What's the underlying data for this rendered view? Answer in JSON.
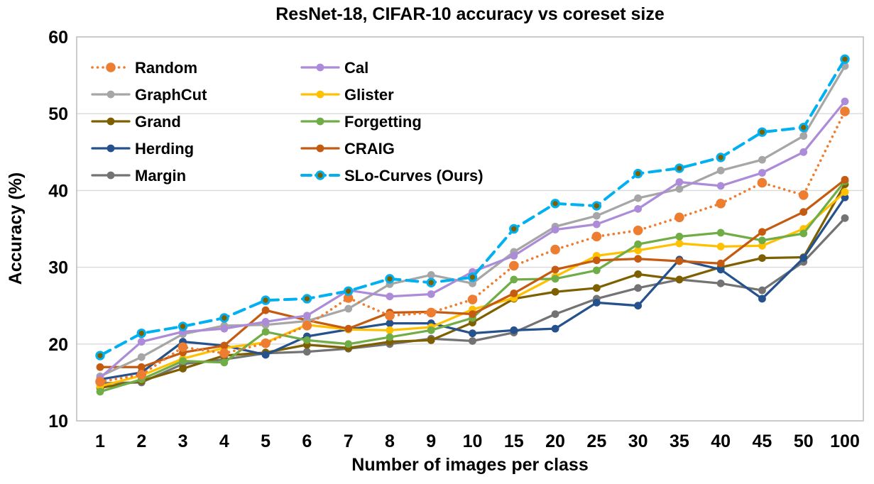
{
  "chart_data": {
    "type": "line",
    "title": "ResNet-18, CIFAR-10 accuracy vs coreset size",
    "xlabel": "Number of images per class",
    "ylabel": "Accuracy (%)",
    "ylim": [
      10,
      60
    ],
    "yticks": [
      10,
      20,
      30,
      40,
      50,
      60
    ],
    "grid": "horizontal",
    "legend_position": "inside-top-left-two-columns",
    "categories": [
      "1",
      "2",
      "3",
      "4",
      "5",
      "6",
      "7",
      "8",
      "9",
      "10",
      "15",
      "20",
      "25",
      "30",
      "35",
      "40",
      "45",
      "50",
      "100"
    ],
    "series": [
      {
        "name": "Random",
        "color": "#ED7D31",
        "style": "dotted",
        "marker": "circle",
        "z": 9,
        "values": [
          15.1,
          16.0,
          19.6,
          18.8,
          20.1,
          22.4,
          26.0,
          23.7,
          24.1,
          25.8,
          30.2,
          32.3,
          34.0,
          34.8,
          36.5,
          38.3,
          41.0,
          39.4,
          50.3
        ]
      },
      {
        "name": "Cal",
        "color": "#AC8CD8",
        "style": "solid",
        "marker": "circle",
        "z": 8,
        "values": [
          15.6,
          20.3,
          21.6,
          22.0,
          22.9,
          23.7,
          27.0,
          26.2,
          26.5,
          29.4,
          31.5,
          34.9,
          35.6,
          37.6,
          41.1,
          40.6,
          42.3,
          45.0,
          51.6
        ]
      },
      {
        "name": "GraphCut",
        "color": "#A6A6A6",
        "style": "solid",
        "marker": "circle",
        "z": 7,
        "values": [
          15.8,
          18.3,
          21.3,
          22.4,
          22.5,
          23.0,
          24.6,
          27.8,
          29.0,
          27.9,
          32.0,
          35.3,
          36.7,
          39.0,
          40.2,
          42.6,
          44.0,
          47.1,
          56.2
        ]
      },
      {
        "name": "Glister",
        "color": "#FFC000",
        "style": "solid",
        "marker": "circle",
        "z": 4,
        "values": [
          14.5,
          15.9,
          18.1,
          19.5,
          20.2,
          22.5,
          21.9,
          21.8,
          22.2,
          24.5,
          26.0,
          28.8,
          31.5,
          32.2,
          33.1,
          32.7,
          32.8,
          35.0,
          39.8
        ]
      },
      {
        "name": "Grand",
        "color": "#7F6000",
        "style": "solid",
        "marker": "circle",
        "z": 2,
        "values": [
          14.3,
          15.2,
          16.8,
          18.5,
          18.9,
          19.9,
          19.5,
          20.3,
          20.5,
          22.8,
          25.9,
          26.8,
          27.3,
          29.1,
          28.4,
          30.0,
          31.2,
          31.3,
          40.8
        ]
      },
      {
        "name": "Forgetting",
        "color": "#70AD47",
        "style": "solid",
        "marker": "circle",
        "z": 5,
        "values": [
          13.8,
          15.4,
          17.8,
          17.6,
          21.6,
          20.5,
          20.0,
          20.9,
          21.8,
          23.4,
          28.4,
          28.5,
          29.6,
          33.0,
          34.0,
          34.5,
          33.5,
          34.4,
          41.2
        ]
      },
      {
        "name": "Herding",
        "color": "#25518C",
        "style": "solid",
        "marker": "circle",
        "z": 3,
        "values": [
          15.4,
          16.3,
          20.3,
          19.8,
          18.6,
          21.0,
          21.9,
          22.7,
          22.7,
          21.4,
          21.8,
          22.0,
          25.4,
          25.0,
          31.0,
          29.7,
          25.9,
          31.2,
          39.1
        ]
      },
      {
        "name": "CRAIG",
        "color": "#C55A11",
        "style": "solid",
        "marker": "circle",
        "z": 6,
        "values": [
          17.0,
          17.0,
          18.9,
          19.8,
          24.4,
          23.1,
          22.0,
          24.1,
          24.2,
          23.9,
          26.6,
          29.7,
          30.9,
          31.1,
          30.8,
          30.5,
          34.6,
          37.2,
          41.4
        ]
      },
      {
        "name": "Margin",
        "color": "#737373",
        "style": "solid",
        "marker": "circle",
        "z": 1,
        "values": [
          14.9,
          15.0,
          17.4,
          18.0,
          18.8,
          19.0,
          19.4,
          20.0,
          20.7,
          20.4,
          21.5,
          23.9,
          25.9,
          27.3,
          28.4,
          27.9,
          27.0,
          30.7,
          36.4
        ]
      },
      {
        "name": "SLo-Curves (Ours)",
        "color": "#00B0F0",
        "style": "dashed",
        "marker": "ringed-circle",
        "marker_fill": "#7F6000",
        "z": 10,
        "values": [
          18.5,
          21.4,
          22.3,
          23.4,
          25.7,
          25.9,
          26.9,
          28.5,
          28.0,
          28.7,
          35.0,
          38.3,
          38.0,
          42.2,
          42.9,
          44.3,
          47.6,
          48.2,
          57.1
        ]
      }
    ],
    "legend_columns": [
      [
        "Random",
        "GraphCut",
        "Grand",
        "Herding",
        "Margin"
      ],
      [
        "Cal",
        "Glister",
        "Forgetting",
        "CRAIG",
        "SLo-Curves (Ours)"
      ]
    ],
    "colors": {
      "axis_border": "#BFBFBF",
      "gridline": "#D9D9D9",
      "text": "#000000",
      "background": "#FFFFFF"
    }
  }
}
